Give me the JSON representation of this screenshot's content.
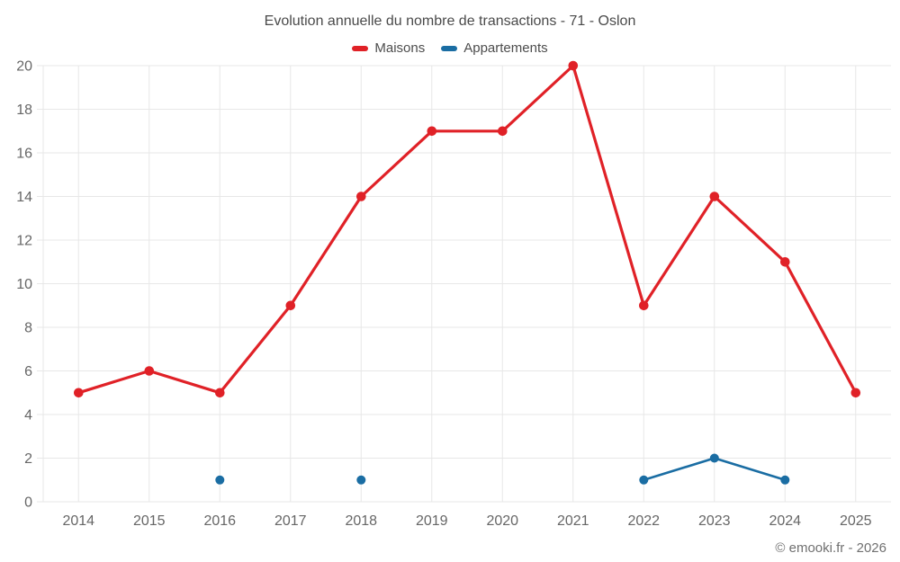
{
  "title": "Evolution annuelle du nombre de transactions - 71 - Oslon",
  "footer": "© emooki.fr - 2026",
  "colors": {
    "maisons_red": "#e02127",
    "appartements_blue": "#1a6da3",
    "grid": "#e7e7e7",
    "axis_label": "#666666",
    "title_text": "#4a4a4a"
  },
  "chart_data": {
    "type": "line",
    "title": "Evolution annuelle du nombre de transactions - 71 - Oslon",
    "categories": [
      "2014",
      "2015",
      "2016",
      "2017",
      "2018",
      "2019",
      "2020",
      "2021",
      "2022",
      "2023",
      "2024",
      "2025"
    ],
    "series": [
      {
        "name": "Maisons",
        "color": "#e02127",
        "line_width": 3.2,
        "marker_radius": 5.3,
        "values": [
          5,
          6,
          5,
          9,
          14,
          17,
          17,
          20,
          9,
          14,
          11,
          5
        ]
      },
      {
        "name": "Appartements",
        "color": "#1a6da3",
        "line_width": 2.6,
        "marker_radius": 5,
        "values": [
          null,
          null,
          1,
          null,
          1,
          null,
          null,
          null,
          1,
          2,
          1,
          null
        ]
      }
    ],
    "xlabel": "",
    "ylabel": "",
    "ylim": [
      0,
      20
    ],
    "ytick_step": 2,
    "grid": true,
    "legend_position": "top",
    "credit": "© emooki.fr - 2026"
  }
}
